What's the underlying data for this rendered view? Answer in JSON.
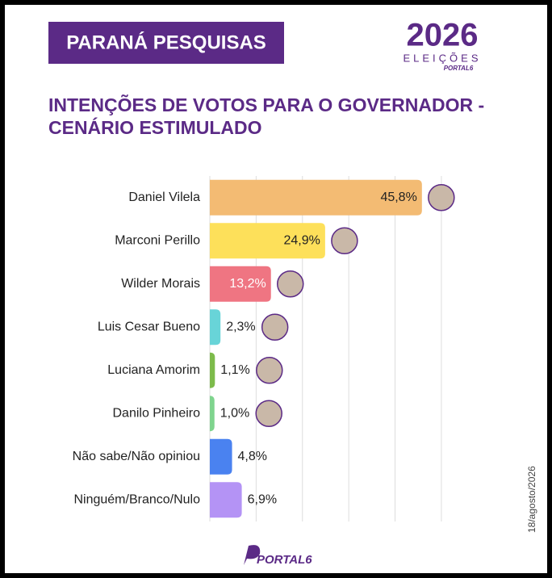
{
  "source": "PARANÁ PESQUISAS",
  "logo": {
    "year": "2026",
    "label": "ELEIÇÕES",
    "brand": "PORTAL6"
  },
  "date": "18/agosto/2026",
  "footer": "PORTAL6",
  "chart_data": {
    "type": "hbar",
    "title": "INTENÇÕES DE VOTOS PARA O GOVERNADOR - CENÁRIO ESTIMULADO",
    "categories": [
      "Daniel Vilela",
      "Marconi Perillo",
      "Wilder Morais",
      "Luis Cesar Bueno",
      "Luciana Amorim",
      "Danilo Pinheiro",
      "Não sabe/Não opiniou",
      "Ninguém/Branco/Nulo"
    ],
    "values": [
      45.8,
      24.9,
      13.2,
      2.3,
      1.1,
      1.0,
      4.8,
      6.9
    ],
    "value_labels": [
      "45,8%",
      "24,9%",
      "13,2%",
      "2,3%",
      "1,1%",
      "1,0%",
      "4,8%",
      "6,9%"
    ],
    "colors": [
      "#f3bb73",
      "#fde05a",
      "#ef7582",
      "#68d4d8",
      "#7dbb4b",
      "#7fd48e",
      "#4a82f0",
      "#b493f5"
    ],
    "xlim": [
      0,
      65
    ],
    "xticks": [
      0,
      10,
      20,
      30,
      40,
      50
    ],
    "grid": true
  }
}
